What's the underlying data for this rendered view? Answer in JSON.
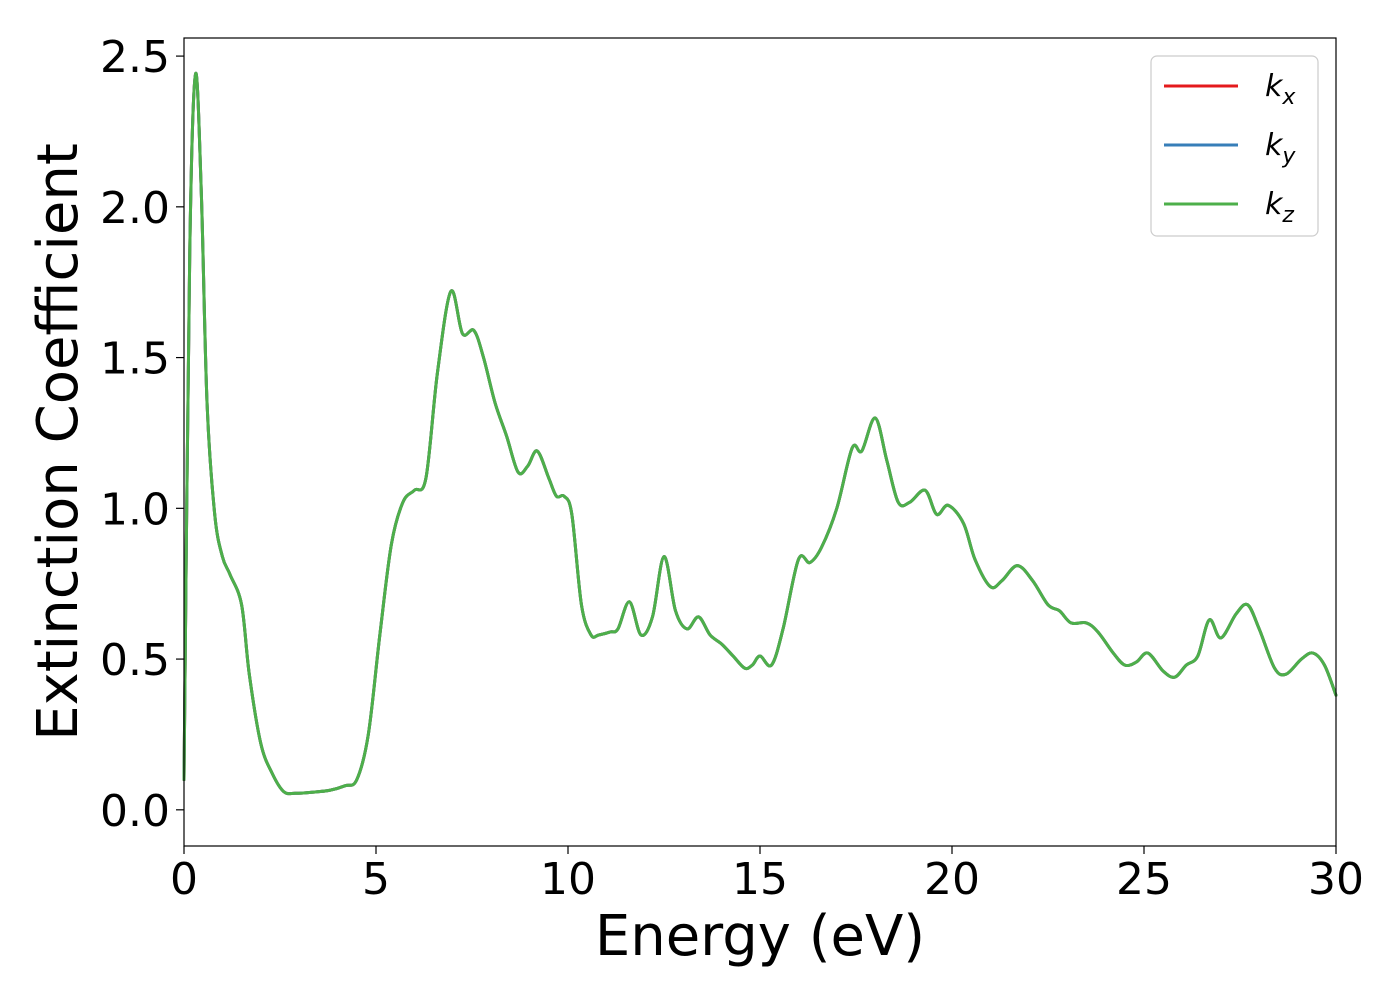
{
  "chart_data": {
    "type": "line",
    "xlabel": "Energy (eV)",
    "ylabel": "Extinction Coefficient",
    "xlim": [
      0,
      30
    ],
    "ylim": [
      -0.12,
      2.56
    ],
    "xticks": [
      0,
      5,
      10,
      15,
      20,
      25,
      30
    ],
    "xtick_labels": [
      "0",
      "5",
      "10",
      "15",
      "20",
      "25",
      "30"
    ],
    "yticks": [
      0.0,
      0.5,
      1.0,
      1.5,
      2.0,
      2.5
    ],
    "ytick_labels": [
      "0.0",
      "0.5",
      "1.0",
      "1.5",
      "2.0",
      "2.5"
    ],
    "grid": false,
    "legend_position": "top-right",
    "legend": [
      {
        "base": "k",
        "sub": "x",
        "color": "#e41a1c"
      },
      {
        "base": "k",
        "sub": "y",
        "color": "#377eb8"
      },
      {
        "base": "k",
        "sub": "z",
        "color": "#4daf4a"
      }
    ],
    "x": [
      0,
      0.15,
      0.3,
      0.45,
      0.6,
      0.8,
      1.0,
      1.2,
      1.5,
      1.7,
      2.0,
      2.3,
      2.6,
      2.9,
      3.3,
      3.8,
      4.2,
      4.5,
      4.8,
      5.1,
      5.4,
      5.7,
      6.0,
      6.3,
      6.6,
      6.95,
      7.25,
      7.55,
      7.8,
      8.1,
      8.4,
      8.7,
      8.95,
      9.2,
      9.5,
      9.7,
      9.9,
      10.1,
      10.35,
      10.6,
      10.8,
      11.1,
      11.3,
      11.6,
      11.9,
      12.2,
      12.5,
      12.8,
      13.1,
      13.4,
      13.7,
      14.0,
      14.3,
      14.6,
      14.8,
      15.0,
      15.3,
      15.6,
      16.0,
      16.3,
      16.6,
      17.0,
      17.4,
      17.65,
      18.0,
      18.3,
      18.6,
      18.9,
      19.3,
      19.6,
      19.9,
      20.3,
      20.6,
      21.0,
      21.3,
      21.7,
      22.1,
      22.5,
      22.8,
      23.1,
      23.5,
      23.8,
      24.2,
      24.5,
      24.8,
      25.1,
      25.5,
      25.8,
      26.1,
      26.4,
      26.7,
      27.0,
      27.4,
      27.7,
      28.0,
      28.4,
      28.7,
      29.1,
      29.4,
      29.7,
      30.0
    ],
    "series": [
      {
        "name": "k_x",
        "color": "#e41a1c",
        "values": [
          0.1,
          1.85,
          2.44,
          2.05,
          1.35,
          0.98,
          0.84,
          0.78,
          0.68,
          0.45,
          0.22,
          0.12,
          0.06,
          0.055,
          0.058,
          0.065,
          0.08,
          0.1,
          0.25,
          0.58,
          0.88,
          1.02,
          1.06,
          1.1,
          1.45,
          1.72,
          1.58,
          1.59,
          1.5,
          1.35,
          1.24,
          1.12,
          1.14,
          1.19,
          1.1,
          1.04,
          1.04,
          0.98,
          0.68,
          0.58,
          0.58,
          0.59,
          0.6,
          0.69,
          0.58,
          0.64,
          0.84,
          0.66,
          0.6,
          0.64,
          0.58,
          0.55,
          0.51,
          0.47,
          0.48,
          0.51,
          0.48,
          0.6,
          0.83,
          0.82,
          0.87,
          1.0,
          1.2,
          1.19,
          1.3,
          1.16,
          1.02,
          1.02,
          1.06,
          0.98,
          1.01,
          0.95,
          0.83,
          0.74,
          0.76,
          0.81,
          0.76,
          0.68,
          0.66,
          0.62,
          0.62,
          0.59,
          0.52,
          0.48,
          0.49,
          0.52,
          0.46,
          0.44,
          0.48,
          0.51,
          0.63,
          0.57,
          0.65,
          0.68,
          0.6,
          0.47,
          0.45,
          0.5,
          0.52,
          0.48,
          0.38
        ]
      },
      {
        "name": "k_y",
        "color": "#377eb8",
        "values": [
          0.1,
          1.85,
          2.44,
          2.05,
          1.35,
          0.98,
          0.84,
          0.78,
          0.68,
          0.45,
          0.22,
          0.12,
          0.06,
          0.055,
          0.058,
          0.065,
          0.08,
          0.1,
          0.25,
          0.58,
          0.88,
          1.02,
          1.06,
          1.1,
          1.45,
          1.72,
          1.58,
          1.59,
          1.5,
          1.35,
          1.24,
          1.12,
          1.14,
          1.19,
          1.1,
          1.04,
          1.04,
          0.98,
          0.68,
          0.58,
          0.58,
          0.59,
          0.6,
          0.69,
          0.58,
          0.64,
          0.84,
          0.66,
          0.6,
          0.64,
          0.58,
          0.55,
          0.51,
          0.47,
          0.48,
          0.51,
          0.48,
          0.6,
          0.83,
          0.82,
          0.87,
          1.0,
          1.2,
          1.19,
          1.3,
          1.16,
          1.02,
          1.02,
          1.06,
          0.98,
          1.01,
          0.95,
          0.83,
          0.74,
          0.76,
          0.81,
          0.76,
          0.68,
          0.66,
          0.62,
          0.62,
          0.59,
          0.52,
          0.48,
          0.49,
          0.52,
          0.46,
          0.44,
          0.48,
          0.51,
          0.63,
          0.57,
          0.65,
          0.68,
          0.6,
          0.47,
          0.45,
          0.5,
          0.52,
          0.48,
          0.38
        ]
      },
      {
        "name": "k_z",
        "color": "#4daf4a",
        "values": [
          0.1,
          1.85,
          2.44,
          2.05,
          1.35,
          0.98,
          0.84,
          0.78,
          0.68,
          0.45,
          0.22,
          0.12,
          0.06,
          0.055,
          0.058,
          0.065,
          0.08,
          0.1,
          0.25,
          0.58,
          0.88,
          1.02,
          1.06,
          1.1,
          1.45,
          1.72,
          1.58,
          1.59,
          1.5,
          1.35,
          1.24,
          1.12,
          1.14,
          1.19,
          1.1,
          1.04,
          1.04,
          0.98,
          0.68,
          0.58,
          0.58,
          0.59,
          0.6,
          0.69,
          0.58,
          0.64,
          0.84,
          0.66,
          0.6,
          0.64,
          0.58,
          0.55,
          0.51,
          0.47,
          0.48,
          0.51,
          0.48,
          0.6,
          0.83,
          0.82,
          0.87,
          1.0,
          1.2,
          1.19,
          1.3,
          1.16,
          1.02,
          1.02,
          1.06,
          0.98,
          1.01,
          0.95,
          0.83,
          0.74,
          0.76,
          0.81,
          0.76,
          0.68,
          0.66,
          0.62,
          0.62,
          0.59,
          0.52,
          0.48,
          0.49,
          0.52,
          0.46,
          0.44,
          0.48,
          0.51,
          0.63,
          0.57,
          0.65,
          0.68,
          0.6,
          0.47,
          0.45,
          0.5,
          0.52,
          0.48,
          0.38
        ]
      }
    ]
  }
}
